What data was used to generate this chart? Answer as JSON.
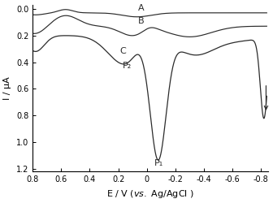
{
  "title": "",
  "xlabel_italic": "vs.",
  "xlabel_pre": "E / V (",
  "xlabel_post": " Ag/AgCl )",
  "ylabel": "I / μA",
  "xlim": [
    0.8,
    -0.85
  ],
  "ylim": [
    1.22,
    -0.03
  ],
  "xticks": [
    0.8,
    0.6,
    0.4,
    0.2,
    0.0,
    -0.2,
    -0.4,
    -0.6,
    -0.8
  ],
  "yticks": [
    0.0,
    0.2,
    0.4,
    0.6,
    0.8,
    1.0,
    1.2
  ],
  "label_A": "A",
  "label_B": "B",
  "label_C": "C",
  "label_P2": "P₂",
  "label_P1": "P₁",
  "line_color": "#2b2b2b",
  "annotation_fontsize": 8
}
